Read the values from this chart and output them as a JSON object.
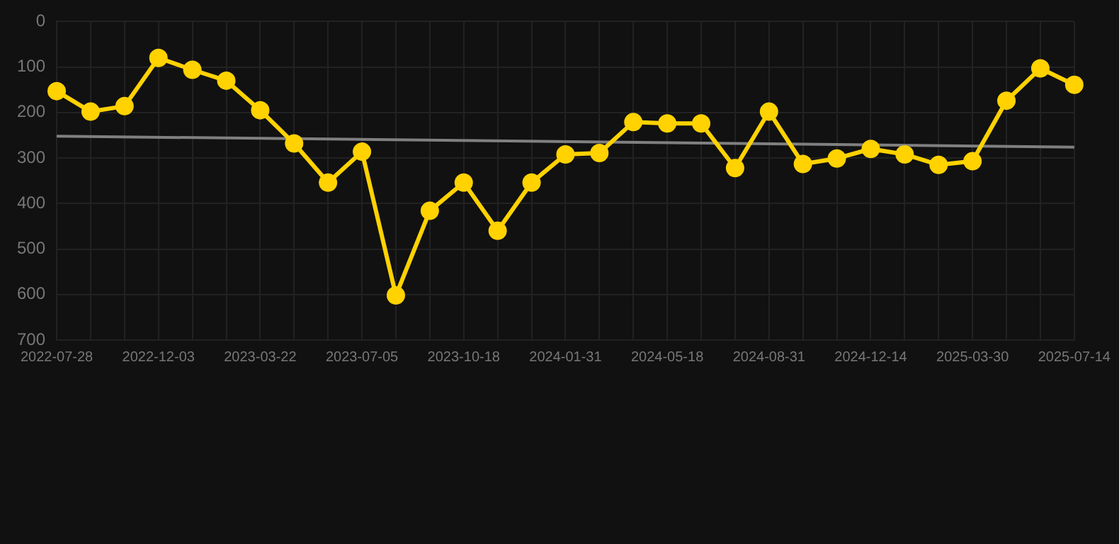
{
  "chart_data": {
    "type": "line",
    "categories": [
      "2022-07-28",
      null,
      null,
      "2022-12-03",
      null,
      null,
      "2023-03-22",
      null,
      null,
      "2023-07-05",
      null,
      null,
      "2023-10-18",
      null,
      null,
      "2024-01-31",
      null,
      null,
      "2024-05-18",
      null,
      null,
      "2024-08-31",
      null,
      null,
      "2024-12-14",
      null,
      null,
      "2025-03-30",
      null,
      null,
      "2025-07-14"
    ],
    "series": [
      {
        "color": "#ffd200",
        "values": [
          153,
          198,
          186,
          80,
          106,
          130,
          195,
          268,
          354,
          286,
          602,
          416,
          354,
          460,
          354,
          292,
          289,
          221,
          224,
          224,
          322,
          198,
          313,
          301,
          280,
          292,
          315,
          307,
          174,
          103,
          139
        ]
      },
      {
        "type": "line",
        "color": "#808080",
        "marker": "none",
        "values": [
          252,
          null,
          null,
          null,
          null,
          null,
          null,
          null,
          null,
          null,
          null,
          null,
          null,
          null,
          null,
          null,
          null,
          null,
          null,
          null,
          null,
          null,
          null,
          null,
          null,
          null,
          null,
          null,
          null,
          null,
          276
        ]
      }
    ],
    "ylim": [
      700,
      0
    ],
    "yticks": [
      0,
      100,
      200,
      300,
      400,
      500,
      600,
      700
    ],
    "grid": true,
    "legend": false,
    "marker": "circle",
    "line_style": "solid"
  }
}
